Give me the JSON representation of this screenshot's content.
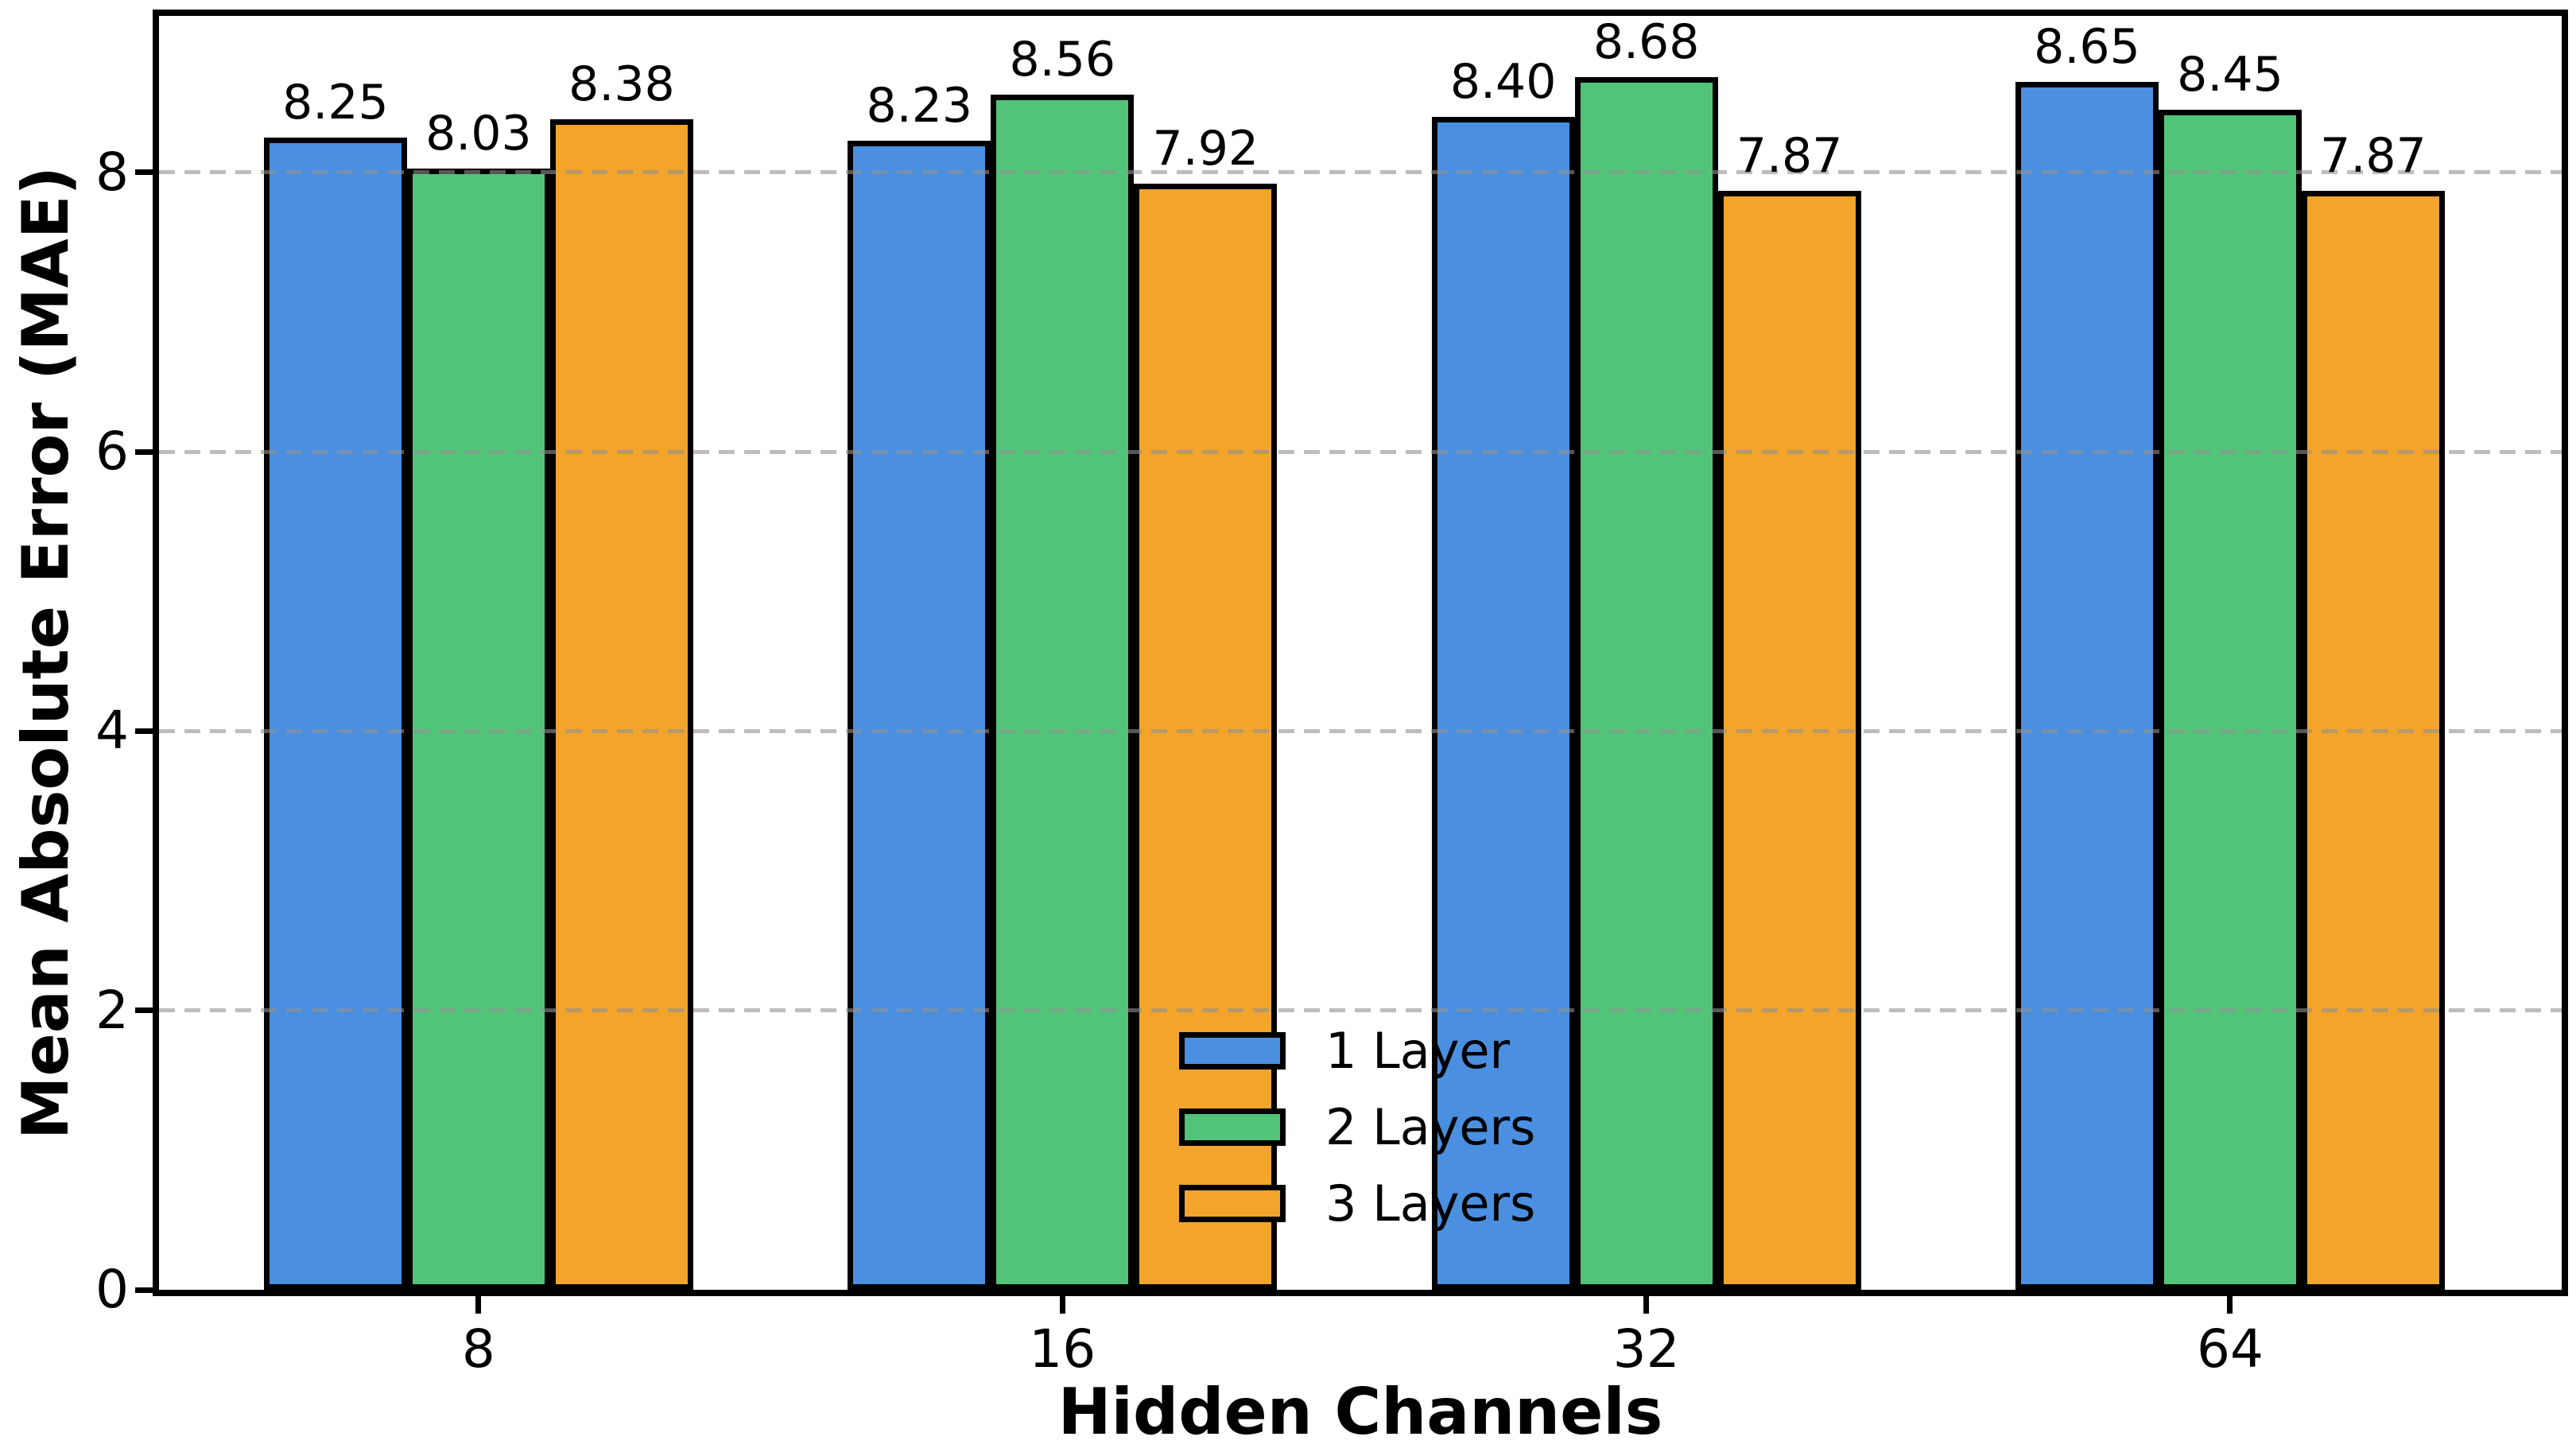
{
  "chart_data": {
    "type": "bar",
    "title": "",
    "xlabel": "Hidden Channels",
    "ylabel": "Mean Absolute Error (MAE)",
    "categories": [
      "8",
      "16",
      "32",
      "64"
    ],
    "series": [
      {
        "name": "1 Layer",
        "color": "#4A8FE0",
        "values": [
          8.25,
          8.23,
          8.4,
          8.65
        ]
      },
      {
        "name": "2 Layers",
        "color": "#52C47A",
        "values": [
          8.03,
          8.56,
          8.68,
          8.45
        ]
      },
      {
        "name": "3 Layers",
        "color": "#F2A42B",
        "values": [
          8.38,
          7.92,
          7.87,
          7.87
        ]
      }
    ],
    "bar_value_labels": [
      [
        "8.25",
        "8.23",
        "8.40",
        "8.65"
      ],
      [
        "8.03",
        "8.56",
        "8.68",
        "8.45"
      ],
      [
        "8.38",
        "7.92",
        "7.87",
        "7.87"
      ]
    ],
    "yticks": [
      "0",
      "2",
      "4",
      "6",
      "8"
    ],
    "ylim": [
      0,
      9.12
    ],
    "grid": {
      "axis": "y",
      "style": "dashed",
      "color": "#C8C8C8",
      "over_bars": true
    },
    "legend": {
      "position": "lower-center-inside-plot",
      "frame": false
    },
    "bar_edge_color": "#000000",
    "axis_color": "#000000",
    "background": "#FFFFFF"
  }
}
